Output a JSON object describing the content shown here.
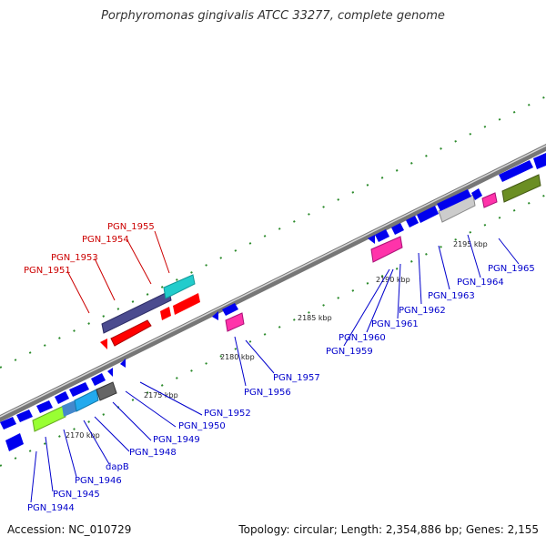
{
  "title": "Porphyromonas gingivalis ATCC 33277, complete genome",
  "footer": {
    "accession": "Accession: NC_010729",
    "stats": "Topology: circular; Length: 2,354,886 bp; Genes: 2,155"
  },
  "colors": {
    "backbone": "#888888",
    "dots": "#2e8b2e",
    "label_blue": "#0000cc",
    "label_red": "#cc0000",
    "gene_blue": "#0000ee"
  },
  "ticks": [
    "2170 kbp",
    "2175 kbp",
    "2180 kbp",
    "2185 kbp",
    "2190 kbp",
    "2195 kbp"
  ],
  "red_labels": [
    "PGN_1955",
    "PGN_1954",
    "PGN_1953",
    "PGN_1951"
  ],
  "blue_labels": [
    "PGN_1965",
    "PGN_1964",
    "PGN_1963",
    "PGN_1962",
    "PGN_1961",
    "PGN_1960",
    "PGN_1959",
    "PGN_1957",
    "PGN_1956",
    "PGN_1952",
    "PGN_1950",
    "PGN_1949",
    "PGN_1948",
    "dapB",
    "PGN_1946",
    "PGN_1945",
    "PGN_1944"
  ]
}
